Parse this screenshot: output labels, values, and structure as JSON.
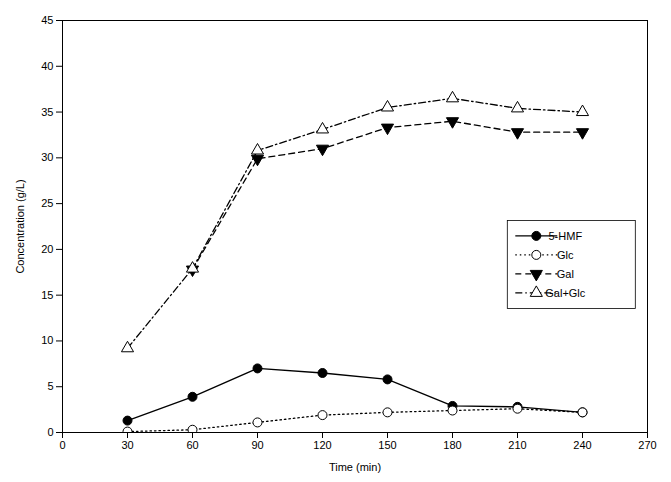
{
  "chart_data": {
    "type": "line",
    "xlabel": "Time (min)",
    "ylabel": "Concentration (g/L)",
    "xlim": [
      0,
      270
    ],
    "ylim": [
      0,
      45
    ],
    "xticks": [
      0,
      30,
      60,
      90,
      120,
      150,
      180,
      210,
      240,
      270
    ],
    "yticks": [
      0,
      5,
      10,
      15,
      20,
      25,
      30,
      35,
      40,
      45
    ],
    "legend": "lower right",
    "series": [
      {
        "name": "5-HMF",
        "color": "black",
        "marker": "circle",
        "line_style": "solid",
        "x": [
          30,
          60,
          90,
          120,
          150,
          180,
          210,
          240
        ],
        "values": [
          1.3,
          3.9,
          7.0,
          6.5,
          5.8,
          2.9,
          2.8,
          2.2
        ]
      },
      {
        "name": "Glc",
        "color": "black",
        "marker": "circle-open",
        "line_style": "dotted",
        "x": [
          30,
          60,
          90,
          120,
          150,
          180,
          210,
          240
        ],
        "values": [
          0.1,
          0.3,
          1.1,
          1.9,
          2.2,
          2.4,
          2.6,
          2.2
        ]
      },
      {
        "name": "Gal",
        "color": "black",
        "marker": "triangle-down",
        "line_style": "dashed",
        "x": [
          60,
          90,
          120,
          150,
          180,
          210,
          240
        ],
        "values": [
          17.8,
          29.9,
          31.0,
          33.3,
          34.0,
          32.8,
          32.8
        ]
      },
      {
        "name": "Gal+Glc",
        "color": "black",
        "marker": "triangle-up-open",
        "line_style": "dashdot",
        "x": [
          30,
          60,
          90,
          120,
          150,
          180,
          210,
          240
        ],
        "values": [
          9.2,
          17.9,
          30.8,
          33.1,
          35.5,
          36.5,
          35.4,
          35.0
        ]
      }
    ]
  }
}
